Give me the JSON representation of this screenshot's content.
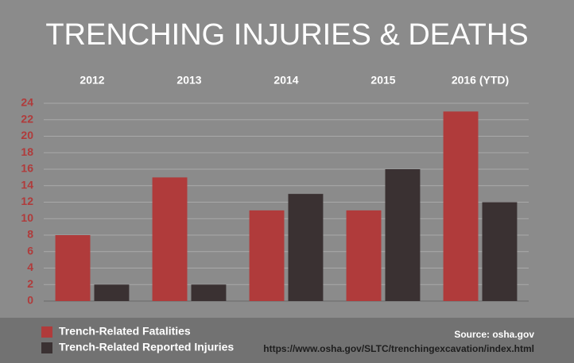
{
  "chart_data": {
    "type": "bar",
    "title": "TRENCHING INJURIES & DEATHS",
    "categories": [
      "2012",
      "2013",
      "2014",
      "2015",
      "2016 (YTD)"
    ],
    "series": [
      {
        "name": "Trench-Related Fatalities",
        "color": "#b03b3b",
        "values": [
          8,
          15,
          11,
          11,
          23
        ]
      },
      {
        "name": "Trench-Related Reported Injuries",
        "color": "#3a3132",
        "values": [
          2,
          2,
          13,
          16,
          12
        ]
      }
    ],
    "ylim": [
      0,
      24
    ],
    "yticks": [
      0,
      2,
      4,
      6,
      8,
      10,
      12,
      14,
      16,
      18,
      20,
      22,
      24
    ],
    "grid": true,
    "source": "Source: osha.gov",
    "source_url": "https://www.osha.gov/SLTC/trenchingexcavation/index.html"
  }
}
